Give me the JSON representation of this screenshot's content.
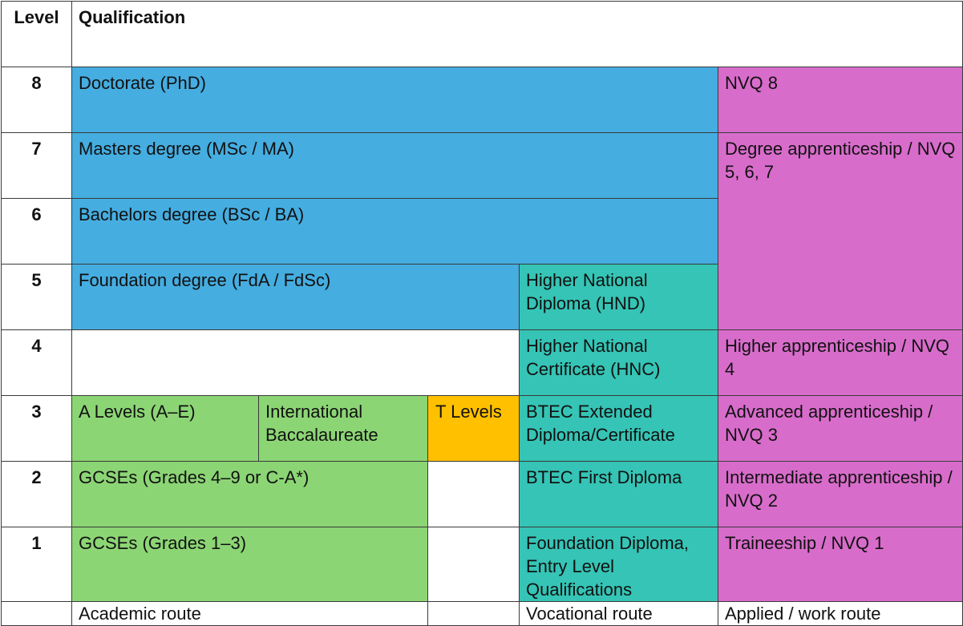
{
  "header": {
    "level": "Level",
    "qualification": "Qualification"
  },
  "levels": [
    "8",
    "7",
    "6",
    "5",
    "4",
    "3",
    "2",
    "1"
  ],
  "academic": {
    "doctorate": "Doctorate (PhD)",
    "masters": "Masters degree (MSc / MA)",
    "bachelors": "Bachelors degree (BSc / BA)",
    "foundation_degree": "Foundation degree (FdA / FdSc)",
    "a_levels": "A Levels (A–E)",
    "ib": "International Baccalaureate",
    "t_levels": "T Levels",
    "gcse_high": "GCSEs (Grades 4–9 or C-A*)",
    "gcse_low": "GCSEs (Grades 1–3)"
  },
  "vocational": {
    "hnd": "Higher National Diploma (HND)",
    "hnc": "Higher National Certificate (HNC)",
    "btec_extended": "BTEC Extended Diploma/Certificate",
    "btec_first": "BTEC First Diploma",
    "foundation_diploma": "Foundation Diploma, Entry Level Qualifications"
  },
  "applied": {
    "nvq8": "NVQ 8",
    "degree_apprenticeship": "Degree apprenticeship / NVQ 5, 6, 7",
    "higher_apprenticeship": "Higher apprenticeship / NVQ 4",
    "advanced_apprenticeship": "Advanced apprenticeship / NVQ 3",
    "intermediate_apprenticeship": "Intermediate apprenticeship / NVQ 2",
    "traineeship": "Traineeship / NVQ 1"
  },
  "routes": {
    "academic": "Academic route",
    "vocational": "Vocational route",
    "applied": "Applied / work route"
  },
  "colors": {
    "academic_higher": "#45ade0",
    "academic_school": "#8cd575",
    "t_levels": "#ffc000",
    "vocational": "#35c4b5",
    "applied": "#d86ccb"
  }
}
